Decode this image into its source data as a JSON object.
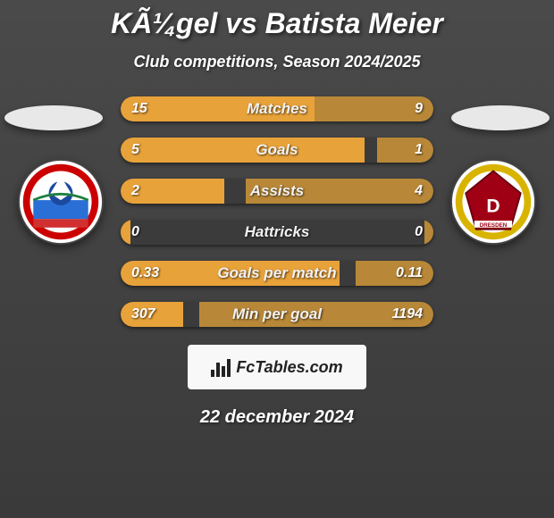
{
  "title": "KÃ¼gel vs Batista Meier",
  "subtitle": "Club competitions, Season 2024/2025",
  "date": "22 december 2024",
  "footer_label": "FcTables.com",
  "colors": {
    "left_bar": "#e8a23a",
    "right_bar": "#e8a23a",
    "right_bar_alt": "#b88838",
    "row_bg": "#3b3b3b",
    "background": "#4a4a4a"
  },
  "rows": [
    {
      "label": "Matches",
      "left": "15",
      "right": "9",
      "left_pct": 62,
      "right_pct": 38
    },
    {
      "label": "Goals",
      "left": "5",
      "right": "1",
      "left_pct": 78,
      "right_pct": 18
    },
    {
      "label": "Assists",
      "left": "2",
      "right": "4",
      "left_pct": 33,
      "right_pct": 60
    },
    {
      "label": "Hattricks",
      "left": "0",
      "right": "0",
      "left_pct": 3,
      "right_pct": 3
    },
    {
      "label": "Goals per match",
      "left": "0.33",
      "right": "0.11",
      "left_pct": 70,
      "right_pct": 25
    },
    {
      "label": "Min per goal",
      "left": "307",
      "right": "1194",
      "left_pct": 20,
      "right_pct": 75
    }
  ]
}
